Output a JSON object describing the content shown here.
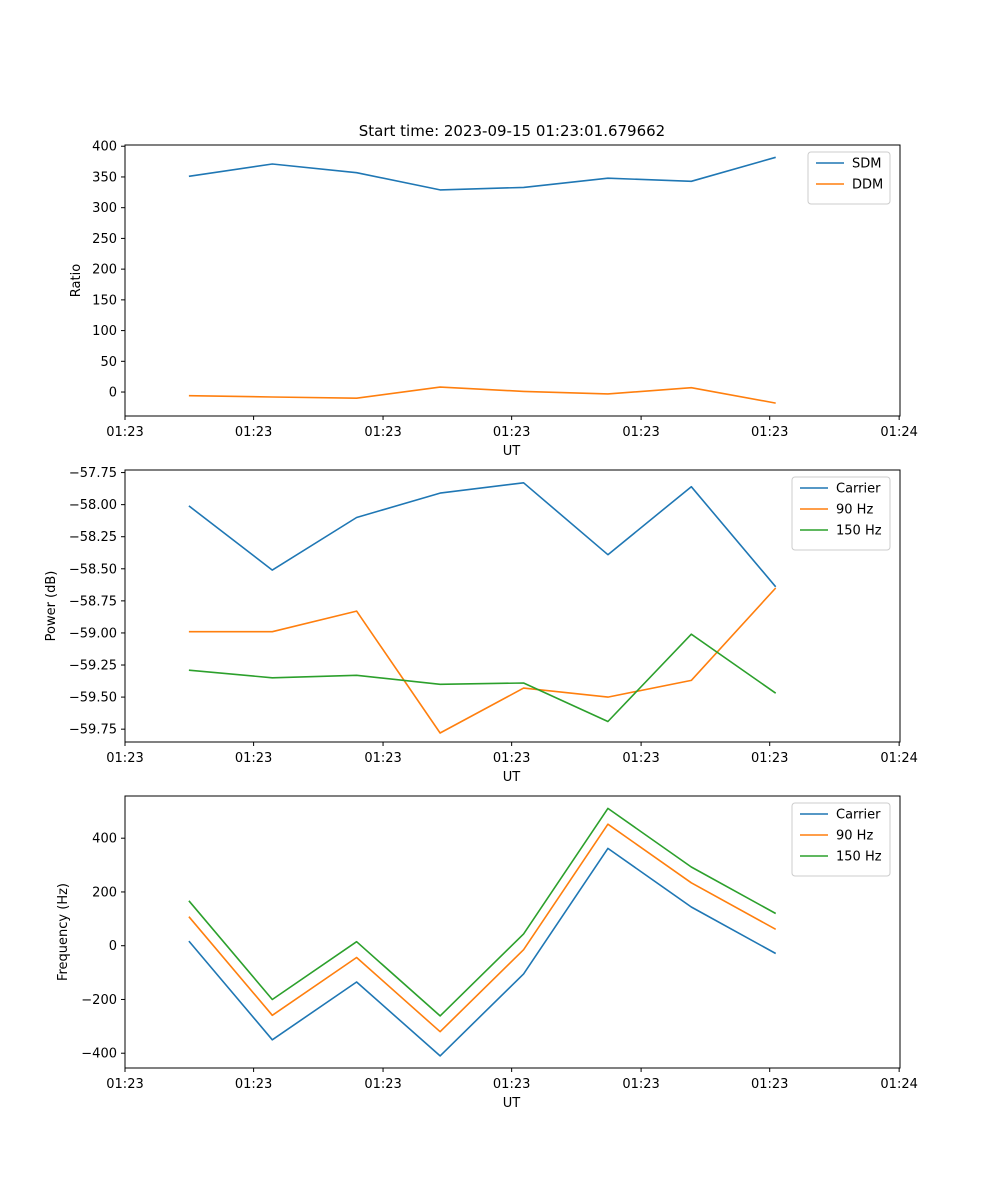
{
  "title": "Start time: 2023-09-15 01:23:01.679662",
  "colors": {
    "blue": "#1f77b4",
    "orange": "#ff7f0e",
    "green": "#2ca02c"
  },
  "chart_data": [
    {
      "type": "line",
      "ylabel": "Ratio",
      "xlabel": "UT",
      "xlim": [
        0,
        9.1
      ],
      "x": [
        0.75,
        1.73,
        2.72,
        3.7,
        4.68,
        5.67,
        6.65,
        7.64
      ],
      "xticks": [
        0,
        1.51,
        3.03,
        4.54,
        6.06,
        7.57,
        9.09
      ],
      "xtick_labels": [
        "01:23",
        "01:23",
        "01:23",
        "01:23",
        "01:23",
        "01:23",
        "01:24"
      ],
      "ylim": [
        -39,
        402
      ],
      "yticks": [
        0,
        50,
        100,
        150,
        200,
        250,
        300,
        350,
        400
      ],
      "ytick_labels": [
        "0",
        "50",
        "100",
        "150",
        "200",
        "250",
        "300",
        "350",
        "400"
      ],
      "legend_position": "top-right",
      "series": [
        {
          "name": "SDM",
          "color": "#1f77b4",
          "values": [
            351,
            371,
            357,
            329,
            333,
            348,
            343,
            382
          ]
        },
        {
          "name": "DDM",
          "color": "#ff7f0e",
          "values": [
            -6,
            -8,
            -10,
            8,
            1,
            -3,
            7,
            -18
          ]
        }
      ]
    },
    {
      "type": "line",
      "ylabel": "Power (dB)",
      "xlabel": "UT",
      "xlim": [
        0,
        9.1
      ],
      "x": [
        0.75,
        1.73,
        2.72,
        3.7,
        4.68,
        5.67,
        6.65,
        7.64
      ],
      "xticks": [
        0,
        1.51,
        3.03,
        4.54,
        6.06,
        7.57,
        9.09
      ],
      "xtick_labels": [
        "01:23",
        "01:23",
        "01:23",
        "01:23",
        "01:23",
        "01:23",
        "01:24"
      ],
      "ylim": [
        -59.85,
        -57.73
      ],
      "yticks": [
        -59.75,
        -59.5,
        -59.25,
        -59.0,
        -58.75,
        -58.5,
        -58.25,
        -58.0,
        -57.75
      ],
      "ytick_labels": [
        "−59.75",
        "−59.50",
        "−59.25",
        "−59.00",
        "−58.75",
        "−58.50",
        "−58.25",
        "−58.00",
        "−57.75"
      ],
      "legend_position": "top-right",
      "series": [
        {
          "name": "Carrier",
          "color": "#1f77b4",
          "values": [
            -58.01,
            -58.51,
            -58.1,
            -57.91,
            -57.83,
            -58.39,
            -57.86,
            -58.64
          ]
        },
        {
          "name": "90 Hz",
          "color": "#ff7f0e",
          "values": [
            -58.99,
            -58.99,
            -58.83,
            -59.78,
            -59.43,
            -59.5,
            -59.37,
            -58.65
          ]
        },
        {
          "name": "150 Hz",
          "color": "#2ca02c",
          "values": [
            -59.29,
            -59.35,
            -59.33,
            -59.4,
            -59.39,
            -59.69,
            -59.01,
            -59.47
          ]
        }
      ]
    },
    {
      "type": "line",
      "ylabel": "Frequency (Hz)",
      "xlabel": "UT",
      "xlim": [
        0,
        9.1
      ],
      "x": [
        0.75,
        1.73,
        2.72,
        3.7,
        4.68,
        5.67,
        6.65,
        7.64
      ],
      "xticks": [
        0,
        1.51,
        3.03,
        4.54,
        6.06,
        7.57,
        9.09
      ],
      "xtick_labels": [
        "01:23",
        "01:23",
        "01:23",
        "01:23",
        "01:23",
        "01:23",
        "01:24"
      ],
      "ylim": [
        -455,
        557
      ],
      "yticks": [
        -400,
        -200,
        0,
        200,
        400
      ],
      "ytick_labels": [
        "−400",
        "−200",
        "0",
        "200",
        "400"
      ],
      "legend_position": "top-right",
      "series": [
        {
          "name": "Carrier",
          "color": "#1f77b4",
          "values": [
            17,
            -350,
            -135,
            -410,
            -105,
            362,
            144,
            -29
          ]
        },
        {
          "name": "90 Hz",
          "color": "#ff7f0e",
          "values": [
            108,
            -259,
            -44,
            -320,
            -15,
            452,
            234,
            61
          ]
        },
        {
          "name": "150 Hz",
          "color": "#2ca02c",
          "values": [
            167,
            -200,
            15,
            -261,
            44,
            511,
            293,
            120
          ]
        }
      ]
    }
  ]
}
